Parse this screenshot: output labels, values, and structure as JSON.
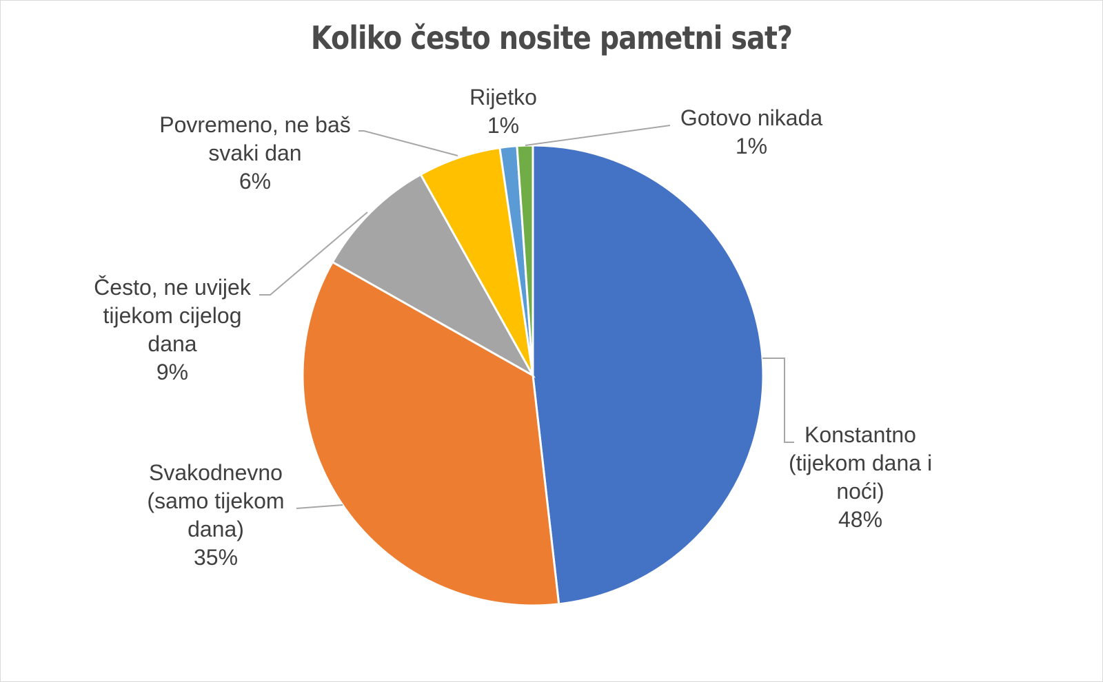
{
  "chart_data": {
    "type": "pie",
    "title": "Koliko često nosite pametni sat?",
    "slices": [
      {
        "label_lines": [
          "Konstantno",
          "(tijekom dana i",
          "noći)"
        ],
        "value_label": "48%",
        "value": 48.2,
        "color": "#4472C4"
      },
      {
        "label_lines": [
          "Svakodnevno",
          "(samo tijekom",
          "dana)"
        ],
        "value_label": "35%",
        "value": 35.0,
        "color": "#ED7D31"
      },
      {
        "label_lines": [
          "Često, ne uvijek",
          "tijekom cijelog",
          "dana"
        ],
        "value_label": "9%",
        "value": 8.7,
        "color": "#A5A5A5"
      },
      {
        "label_lines": [
          "Povremeno, ne baš",
          "svaki dan"
        ],
        "value_label": "6%",
        "value": 5.8,
        "color": "#FFC000"
      },
      {
        "label_lines": [
          "Rijetko"
        ],
        "value_label": "1%",
        "value": 1.2,
        "color": "#5B9BD5"
      },
      {
        "label_lines": [
          "Gotovo nikada"
        ],
        "value_label": "1%",
        "value": 1.1,
        "color": "#70AD47"
      }
    ],
    "start_angle": "12 o'clock",
    "direction": "clockwise",
    "legend": "none",
    "data_labels": "outside with leader lines"
  }
}
